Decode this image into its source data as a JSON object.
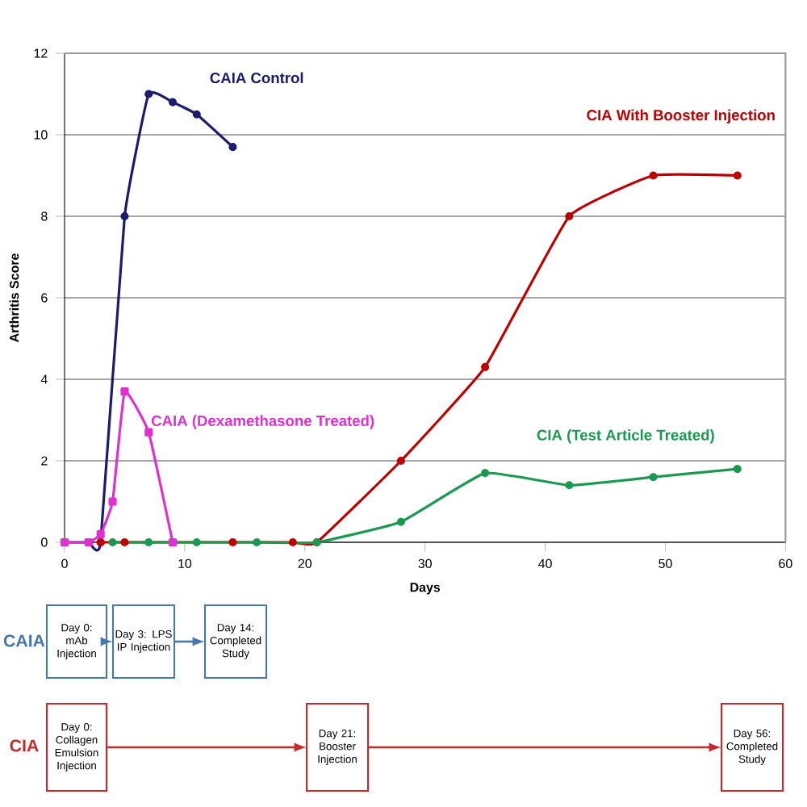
{
  "chart_data": {
    "type": "line",
    "xlabel": "Days",
    "ylabel": "Arthritis Score",
    "xlim": [
      0,
      60
    ],
    "xticks": [
      0,
      10,
      20,
      30,
      40,
      50,
      60
    ],
    "ylim": [
      0,
      12
    ],
    "yticks": [
      0,
      2,
      4,
      6,
      8,
      10,
      12
    ],
    "grid": "y",
    "legend": false,
    "line_style": "solid",
    "series": [
      {
        "name": "CAIA Control",
        "color": "#1c1c6e",
        "marker": "circle",
        "x": [
          0,
          2,
          3,
          5,
          7,
          9,
          11,
          14
        ],
        "values": [
          0,
          0,
          0,
          8,
          11,
          10.8,
          10.5,
          9.7
        ]
      },
      {
        "name": "CAIA (Dexamethasone Treated)",
        "color": "#e030d0",
        "marker": "square",
        "x": [
          0,
          2,
          3,
          4,
          5,
          7,
          9
        ],
        "values": [
          0,
          0,
          0.2,
          1,
          3.7,
          2.7,
          0
        ]
      },
      {
        "name": "CIA With Booster Injection",
        "color": "#c00000",
        "marker": "circle",
        "x": [
          3,
          5,
          14,
          19,
          21,
          28,
          35,
          42,
          49,
          56
        ],
        "values": [
          0,
          0,
          0,
          0,
          0,
          2,
          4.3,
          8,
          9,
          9
        ]
      },
      {
        "name": "CIA (Test Article Treated)",
        "color": "#1a9a50",
        "marker": "circle",
        "x": [
          4,
          7,
          11,
          16,
          21,
          28,
          35,
          42,
          49,
          56
        ],
        "values": [
          0,
          0,
          0,
          0,
          0,
          0.5,
          1.7,
          1.4,
          1.6,
          1.8
        ]
      }
    ],
    "annotations": [
      "CAIA",
      "Day 0: mAb Injection",
      "Day 3: LPS IP Injection",
      "Day 14: Completed Study",
      "CIA",
      "Day 0: Collagen Emulsion Injection",
      "Day 21: Booster Injection",
      "Day 56: Completed Study"
    ]
  }
}
